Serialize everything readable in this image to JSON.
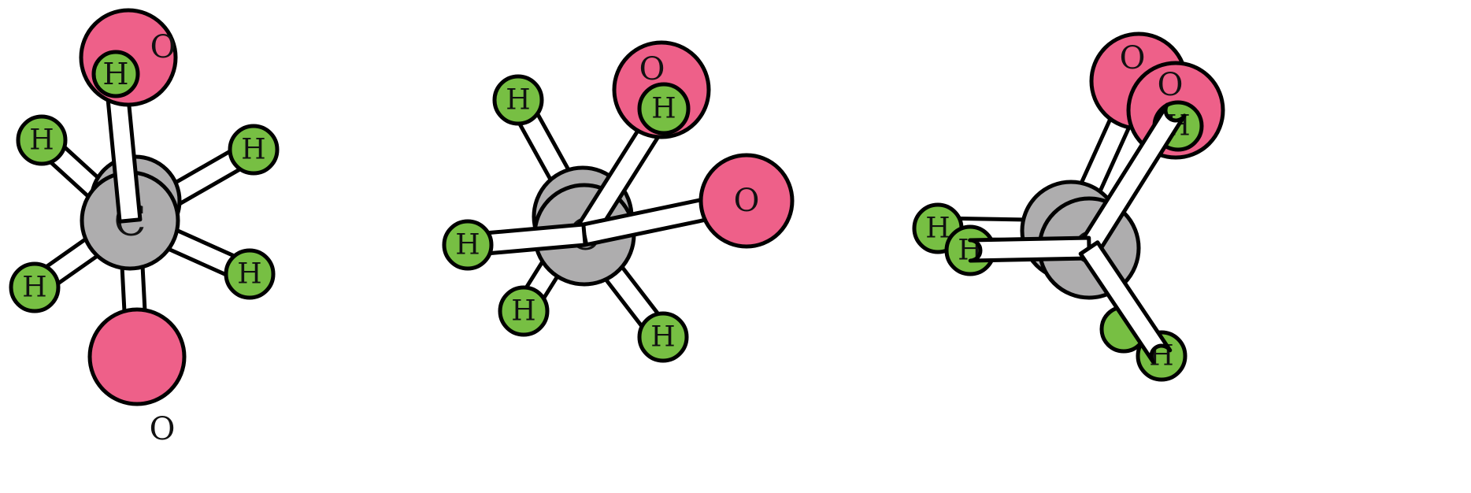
{
  "colors": {
    "carbon": "#aeadae",
    "oxygen": "#ee6089",
    "hydrogen": "#77bf43",
    "bond_fill": "#ffffff",
    "outline": "#000000"
  },
  "labels": {
    "carbon": "C",
    "oxygen": "O",
    "hydrogen": "H"
  },
  "molecules": [
    {
      "atoms": [
        {
          "element": "carbon"
        },
        {
          "element": "carbon"
        },
        {
          "element": "oxygen"
        },
        {
          "element": "hydrogen"
        },
        {
          "element": "hydrogen"
        },
        {
          "element": "hydrogen"
        },
        {
          "element": "hydrogen"
        },
        {
          "element": "hydrogen"
        },
        {
          "element": "oxygen"
        }
      ]
    },
    {
      "atoms": [
        {
          "element": "carbon"
        },
        {
          "element": "carbon"
        },
        {
          "element": "hydrogen"
        },
        {
          "element": "oxygen"
        },
        {
          "element": "hydrogen"
        },
        {
          "element": "oxygen"
        },
        {
          "element": "hydrogen"
        },
        {
          "element": "hydrogen"
        },
        {
          "element": "hydrogen"
        }
      ]
    },
    {
      "atoms": [
        {
          "element": "carbon"
        },
        {
          "element": "carbon"
        },
        {
          "element": "oxygen"
        },
        {
          "element": "oxygen"
        },
        {
          "element": "hydrogen"
        },
        {
          "element": "hydrogen"
        },
        {
          "element": "hydrogen"
        },
        {
          "element": "hydrogen"
        },
        {
          "element": "hydrogen"
        }
      ]
    }
  ]
}
